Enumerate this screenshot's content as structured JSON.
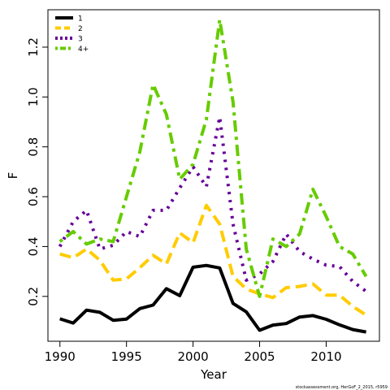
{
  "chart_data": {
    "type": "line",
    "xlabel": "Year",
    "ylabel": "F",
    "xlim": [
      1989.1,
      2014.0
    ],
    "ylim": [
      0.02,
      1.35
    ],
    "x_ticks": [
      1990,
      1995,
      2000,
      2005,
      2010
    ],
    "y_ticks": [
      0.2,
      0.4,
      0.6,
      0.8,
      1.0,
      1.2
    ],
    "y_tick_labels": [
      "0.2",
      "0.4",
      "0.6",
      "0.8",
      "1.0",
      "1.2"
    ],
    "legend_position": "top-left",
    "x": [
      1990,
      1991,
      1992,
      1993,
      1994,
      1995,
      1996,
      1997,
      1998,
      1999,
      2000,
      2001,
      2002,
      2003,
      2004,
      2005,
      2006,
      2007,
      2008,
      2009,
      2010,
      2011,
      2012,
      2013
    ],
    "series": [
      {
        "name": "1",
        "color": "#000000",
        "dash": "solid",
        "values": [
          0.11,
          0.093,
          0.145,
          0.136,
          0.104,
          0.109,
          0.151,
          0.165,
          0.231,
          0.203,
          0.317,
          0.324,
          0.314,
          0.172,
          0.138,
          0.064,
          0.085,
          0.091,
          0.117,
          0.123,
          0.108,
          0.086,
          0.067,
          0.057
        ]
      },
      {
        "name": "2",
        "color": "#FFCC00",
        "dash": "dashed",
        "values": [
          0.37,
          0.355,
          0.39,
          0.345,
          0.265,
          0.27,
          0.315,
          0.365,
          0.33,
          0.455,
          0.415,
          0.565,
          0.49,
          0.28,
          0.23,
          0.21,
          0.195,
          0.235,
          0.24,
          0.25,
          0.205,
          0.205,
          0.16,
          0.125
        ]
      },
      {
        "name": "3",
        "color": "#660099",
        "dash": "dotted",
        "values": [
          0.4,
          0.5,
          0.545,
          0.39,
          0.405,
          0.46,
          0.44,
          0.545,
          0.545,
          0.635,
          0.72,
          0.64,
          0.92,
          0.49,
          0.265,
          0.29,
          0.34,
          0.45,
          0.38,
          0.35,
          0.325,
          0.32,
          0.26,
          0.22
        ]
      },
      {
        "name": "4+",
        "color": "#66CC00",
        "dash": "dotdash",
        "values": [
          0.42,
          0.46,
          0.41,
          0.43,
          0.42,
          0.6,
          0.78,
          1.05,
          0.93,
          0.67,
          0.73,
          0.91,
          1.31,
          0.98,
          0.39,
          0.2,
          0.43,
          0.4,
          0.45,
          0.63,
          0.52,
          0.4,
          0.37,
          0.28
        ]
      }
    ],
    "footnote": "stockassessment.org, HerGoF_2_2015, r5959"
  }
}
